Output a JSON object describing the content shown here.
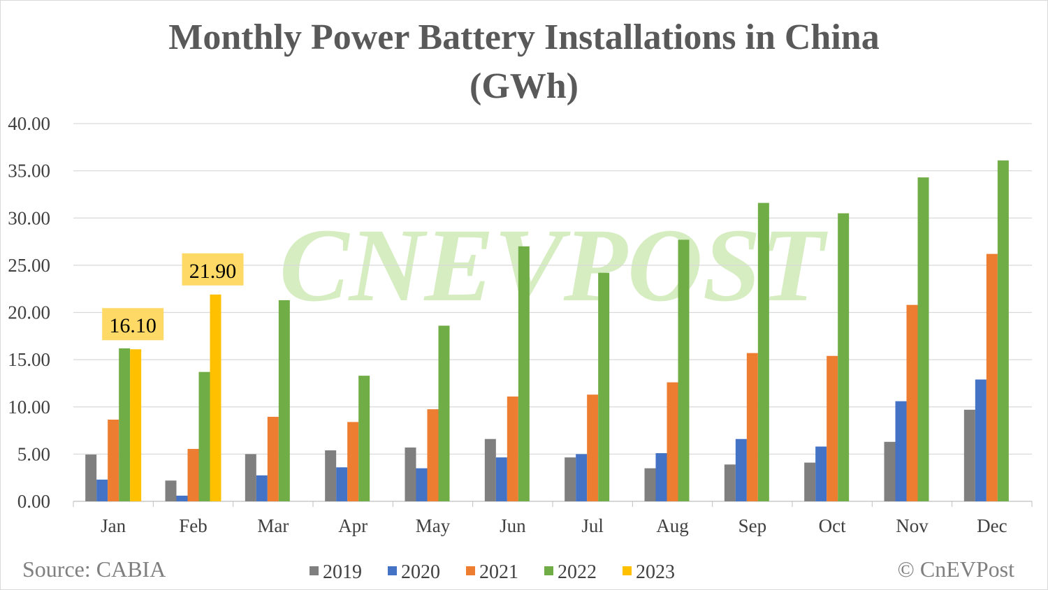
{
  "chart_data": {
    "type": "bar",
    "title": "Monthly Power Battery Installations in China",
    "subtitle": "(GWh)",
    "xlabel": "",
    "ylabel": "",
    "ylim": [
      0,
      40
    ],
    "yticks": [
      "0.00",
      "5.00",
      "10.00",
      "15.00",
      "20.00",
      "25.00",
      "30.00",
      "35.00",
      "40.00"
    ],
    "grid": true,
    "legend_position": "bottom",
    "categories": [
      "Jan",
      "Feb",
      "Mar",
      "Apr",
      "May",
      "Jun",
      "Jul",
      "Aug",
      "Sep",
      "Oct",
      "Nov",
      "Dec"
    ],
    "series": [
      {
        "name": "2019",
        "color": "#7f7f7f",
        "values": [
          4.95,
          2.2,
          5.0,
          5.4,
          5.7,
          6.6,
          4.65,
          3.5,
          3.9,
          4.1,
          6.3,
          9.7
        ]
      },
      {
        "name": "2020",
        "color": "#4472c4",
        "values": [
          2.3,
          0.6,
          2.75,
          3.6,
          3.5,
          4.65,
          5.0,
          5.1,
          6.6,
          5.8,
          10.6,
          12.9
        ]
      },
      {
        "name": "2021",
        "color": "#ed7d31",
        "values": [
          8.65,
          5.55,
          8.95,
          8.4,
          9.75,
          11.1,
          11.3,
          12.6,
          15.7,
          15.4,
          20.8,
          26.2
        ]
      },
      {
        "name": "2022",
        "color": "#70ad47",
        "values": [
          16.2,
          13.7,
          21.3,
          13.3,
          18.6,
          27.0,
          24.2,
          27.7,
          31.6,
          30.5,
          34.3,
          36.1
        ]
      },
      {
        "name": "2023",
        "color": "#ffc000",
        "values": [
          16.1,
          21.9,
          null,
          null,
          null,
          null,
          null,
          null,
          null,
          null,
          null,
          null
        ]
      }
    ],
    "data_labels": [
      {
        "series": "2023",
        "category": "Jan",
        "text": "16.10"
      },
      {
        "series": "2023",
        "category": "Feb",
        "text": "21.90"
      }
    ]
  },
  "footer": {
    "source": "Source: CABIA",
    "copyright": "© CnEVPost"
  },
  "watermark": "CNEVPOST",
  "colors": {
    "label_box": "#ffd966",
    "title": "#595959",
    "axis_text": "#404040",
    "grid": "#d9d9d9"
  }
}
